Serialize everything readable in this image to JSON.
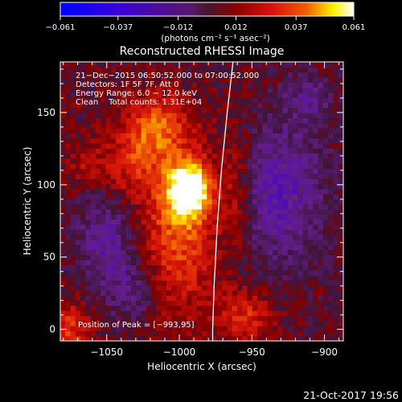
{
  "chart_data": {
    "type": "heatmap",
    "title": "Reconstructed RHESSI Image",
    "xlabel": "Heliocentric X (arcsec)",
    "ylabel": "Heliocentric Y (arcsec)",
    "xlim": [
      -1082,
      -887
    ],
    "ylim": [
      -8,
      185
    ],
    "xticks": [
      -1050,
      -1000,
      -950,
      -900
    ],
    "xtick_labels": [
      "−1050",
      "−1000",
      "−950",
      "−900"
    ],
    "yticks": [
      0,
      50,
      100,
      150
    ],
    "ytick_labels": [
      "0",
      "50",
      "100",
      "150"
    ],
    "colorbar": {
      "ticks": [
        -0.061,
        -0.037,
        -0.012,
        0.012,
        0.037,
        0.061
      ],
      "tick_labels": [
        "−0.061",
        "−0.037",
        "−0.012",
        "0.012",
        "0.037",
        "0.061"
      ],
      "range": [
        -0.061,
        0.061
      ],
      "units_text": "(photons cm⁻² s⁻¹ asec⁻²)"
    },
    "annotations": [
      "21−Dec−2015 06:50:52.000 to 07:00:52.000",
      "Detectors: 1F 5F 7F, Att 0",
      "Energy Range: 6.0 − 12.0 keV",
      "Clean    Total counts: 1.31E+04"
    ],
    "peak_label": "Position of Peak = [−993,95]",
    "peak": {
      "x": -993,
      "y": 95,
      "value": 0.061
    },
    "limb_curve": [
      [
        -963,
        185
      ],
      [
        -967,
        150
      ],
      [
        -971,
        110
      ],
      [
        -974,
        70
      ],
      [
        -976,
        30
      ],
      [
        -977,
        0
      ],
      [
        -977,
        -8
      ]
    ],
    "sources": [
      {
        "x": -993,
        "y": 97,
        "sx": 10,
        "sy": 13,
        "amp": 0.061
      },
      {
        "x": -1000,
        "y": 70,
        "sx": 18,
        "sy": 40,
        "amp": 0.03
      },
      {
        "x": -1015,
        "y": 140,
        "sx": 14,
        "sy": 16,
        "amp": 0.028
      },
      {
        "x": -1035,
        "y": 115,
        "sx": 14,
        "sy": 18,
        "amp": 0.02
      },
      {
        "x": -960,
        "y": 95,
        "sx": 8,
        "sy": 30,
        "amp": 0.016
      },
      {
        "x": -955,
        "y": 10,
        "sx": 14,
        "sy": 12,
        "amp": 0.022
      },
      {
        "x": -1075,
        "y": 0,
        "sx": 10,
        "sy": 14,
        "amp": 0.024
      },
      {
        "x": -1065,
        "y": 115,
        "sx": 8,
        "sy": 10,
        "amp": 0.012
      }
    ],
    "negative_regions": [
      {
        "x": -1050,
        "y": 60,
        "sx": 14,
        "sy": 25,
        "amp": -0.022
      },
      {
        "x": -930,
        "y": 95,
        "sx": 22,
        "sy": 35,
        "amp": -0.025
      },
      {
        "x": -1030,
        "y": 25,
        "sx": 12,
        "sy": 14,
        "amp": -0.015
      },
      {
        "x": -910,
        "y": 160,
        "sx": 12,
        "sy": 12,
        "amp": -0.015
      }
    ]
  },
  "footer": {
    "timestamp": "21-Oct-2017 19:56"
  }
}
